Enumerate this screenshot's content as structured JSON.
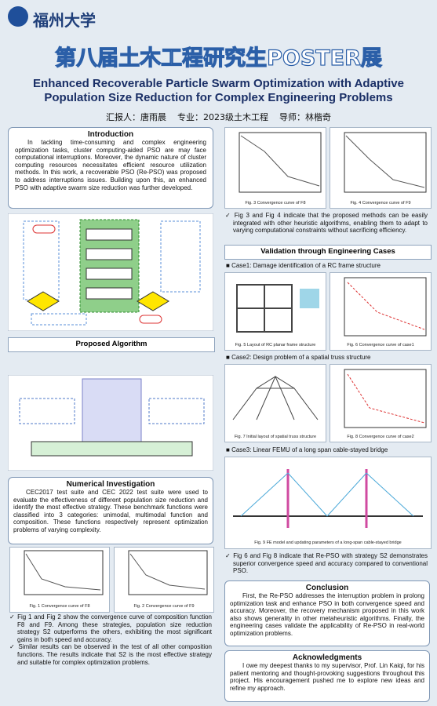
{
  "header": {
    "university": "福州大学",
    "banner": "第八届土木工程研究生POSTER展",
    "title": "Enhanced Recoverable Particle Swarm Optimization with Adaptive Population Size Reduction for Complex Engineering Problems",
    "presenter": "汇报人：唐雨晨",
    "major": "专业：2023级土木工程",
    "advisor": "导师：林楷奇"
  },
  "introduction": {
    "heading": "Introduction",
    "text": "In tackling time-consuming and complex engineering optimization tasks, cluster computing-aided PSO are may face computational interruptions. Moreover, the dynamic nature of cluster computing resources necessitates efficient resource utilization methods. In this work, a recoverable PSO (Re-PSO) was proposed to address interruptions issues. Building upon this, an enhanced PSO with adaptive swarm size reduction was further developed."
  },
  "proposed_algorithm": {
    "heading": "Proposed Algorithm"
  },
  "numerical": {
    "heading": "Numerical Investigation",
    "text": "CEC2017 test suite and CEC 2022 test suite were used to evaluate the effectiveness of different population size reduction and identify the most effective strategy. These benchmark functions were classified into 3 categories: unimodal, multimodal function and composition. These functions respectively represent optimization problems of varying complexity.",
    "fig1": "Fig. 1 Convergence curve of F8",
    "fig2": "Fig. 2 Convergence curve of F9",
    "bullets": [
      "Fig 1 and Fig 2 show the convergence curve of composition function F8 and F9. Among these strategies, population size reduction strategy S2 outperforms the others, exhibiting the most significant gains in both speed and accuracy.",
      "Similar results can be observed in the test of all other composition functions. The results indicate that S2 is the most effective strategy and suitable for complex optimization problems."
    ]
  },
  "right_top": {
    "fig3": "Fig. 3 Convergence curve of F8",
    "fig4": "Fig. 4 Convergence curve of F9",
    "bullet": "Fig 3 and Fig 4 indicate that the proposed methods can be easily integrated with other heuristic algorithms, enabling them to adapt to varying computational constraints without sacrificing efficiency."
  },
  "validation": {
    "heading": "Validation through Engineering Cases",
    "case1": "Case1: Damage identification of a RC frame structure",
    "fig5": "Fig. 5 Layout of RC planar frame structure",
    "fig6": "Fig. 6 Convergence curve of case1",
    "case2": "Case2: Design problem of a spatial truss structure",
    "fig7": "Fig. 7 Initial layout of spatial truss structure",
    "fig8": "Fig. 8 Convergence curve of case2",
    "case3": "Case3: Linear FEMU of a long span cable-stayed bridge",
    "fig9": "Fig. 9 FE model and updating parameters of a long-span cable-stayed bridge",
    "bullet": "Fig 6 and Fig 8 indicate that Re-PSO with strategy S2 demonstrates superior convergence speed and accuracy compared to conventional PSO."
  },
  "conclusion": {
    "heading": "Conclusion",
    "text": "First, the Re-PSO addresses the interruption problem in prolong optimization task and enhance PSO in both convergence speed and accuracy. Moreover, the recovery mechanism proposed in this work also shows generality in other metaheuristic algorithms. Finally, the engineering cases validate the applicability of Re-PSO in real-world optimization problems."
  },
  "acknowledgments": {
    "heading": "Acknowledgments",
    "text": "I owe my deepest thanks to my supervisor, Prof. Lin Kaiqi, for his patient mentoring and thought-provoking suggestions throughout this project. His encouragement pushed me to explore new ideas and refine my approach."
  }
}
